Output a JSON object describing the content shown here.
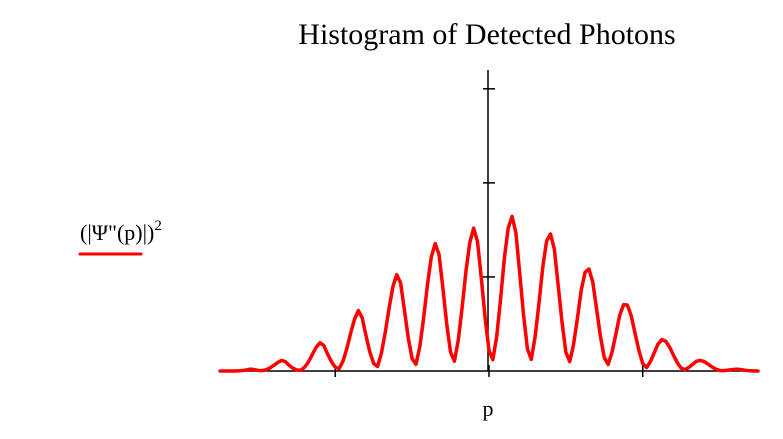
{
  "chart_data": {
    "type": "line",
    "title": "Histogram of Detected Photons",
    "xlabel": "p",
    "ylabel": {
      "open": "(|",
      "psi": "Ψ\"",
      "arg": "(p)",
      "close": "|)",
      "power": "2"
    },
    "xlim": [
      -3.5,
      3.5
    ],
    "ylim": [
      0,
      1.6
    ],
    "x_ticks": [
      -2,
      0,
      2
    ],
    "y_ticks": [
      0.5,
      1.0,
      1.5
    ],
    "grid": false,
    "series": [
      {
        "color": "#ff0000",
        "x": [
          -3.5,
          -3.45,
          -3.4,
          -3.35,
          -3.3,
          -3.25,
          -3.2,
          -3.15,
          -3.1,
          -3.05,
          -3.0,
          -2.95,
          -2.9,
          -2.85,
          -2.8,
          -2.75,
          -2.7,
          -2.65,
          -2.6,
          -2.55,
          -2.5,
          -2.45,
          -2.4,
          -2.35,
          -2.3,
          -2.25,
          -2.2,
          -2.15,
          -2.1,
          -2.05,
          -2.0,
          -1.95,
          -1.9,
          -1.85,
          -1.8,
          -1.75,
          -1.7,
          -1.65,
          -1.6,
          -1.55,
          -1.5,
          -1.45,
          -1.4,
          -1.35,
          -1.3,
          -1.25,
          -1.2,
          -1.15,
          -1.1,
          -1.05,
          -1.0,
          -0.95,
          -0.9,
          -0.85,
          -0.8,
          -0.75,
          -0.7,
          -0.65,
          -0.6,
          -0.55,
          -0.5,
          -0.45,
          -0.4,
          -0.35,
          -0.3,
          -0.25,
          -0.2,
          -0.15,
          -0.1,
          -0.05,
          0.0,
          0.05,
          0.1,
          0.15,
          0.2,
          0.25,
          0.3,
          0.35,
          0.4,
          0.45,
          0.5,
          0.55,
          0.6,
          0.65,
          0.7,
          0.75,
          0.8,
          0.85,
          0.9,
          0.95,
          1.0,
          1.05,
          1.1,
          1.15,
          1.2,
          1.25,
          1.3,
          1.35,
          1.4,
          1.45,
          1.5,
          1.55,
          1.6,
          1.65,
          1.7,
          1.75,
          1.8,
          1.85,
          1.9,
          1.95,
          2.0,
          2.05,
          2.1,
          2.15,
          2.2,
          2.25,
          2.3,
          2.35,
          2.4,
          2.45,
          2.5,
          2.55,
          2.6,
          2.65,
          2.7,
          2.75,
          2.8,
          2.85,
          2.9,
          2.95,
          3.0,
          3.05,
          3.1,
          3.15,
          3.2,
          3.25,
          3.3,
          3.35,
          3.4,
          3.45,
          3.5
        ],
        "y": [
          0.0,
          0.0,
          0.0,
          0.0,
          0.0,
          0.001,
          0.003,
          0.006,
          0.01,
          0.007,
          0.003,
          0.002,
          0.006,
          0.016,
          0.03,
          0.045,
          0.056,
          0.05,
          0.03,
          0.015,
          0.005,
          0.004,
          0.02,
          0.048,
          0.087,
          0.125,
          0.15,
          0.136,
          0.09,
          0.05,
          0.02,
          0.013,
          0.052,
          0.119,
          0.201,
          0.275,
          0.321,
          0.283,
          0.187,
          0.1,
          0.04,
          0.024,
          0.094,
          0.205,
          0.334,
          0.449,
          0.512,
          0.467,
          0.322,
          0.175,
          0.065,
          0.036,
          0.13,
          0.283,
          0.461,
          0.608,
          0.677,
          0.619,
          0.44,
          0.25,
          0.1,
          0.052,
          0.164,
          0.335,
          0.529,
          0.683,
          0.759,
          0.689,
          0.494,
          0.28,
          0.11,
          0.06,
          0.183,
          0.38,
          0.601,
          0.759,
          0.822,
          0.735,
          0.519,
          0.296,
          0.118,
          0.062,
          0.181,
          0.36,
          0.553,
          0.692,
          0.728,
          0.648,
          0.456,
          0.26,
          0.1,
          0.05,
          0.14,
          0.28,
          0.43,
          0.525,
          0.542,
          0.473,
          0.329,
          0.185,
          0.071,
          0.035,
          0.099,
          0.194,
          0.295,
          0.352,
          0.351,
          0.294,
          0.201,
          0.11,
          0.04,
          0.018,
          0.05,
          0.097,
          0.144,
          0.167,
          0.158,
          0.127,
          0.084,
          0.044,
          0.015,
          0.007,
          0.019,
          0.036,
          0.052,
          0.056,
          0.05,
          0.037,
          0.022,
          0.01,
          0.003,
          0.002,
          0.004,
          0.007,
          0.009,
          0.009,
          0.006,
          0.003,
          0.001,
          0.0,
          0.0
        ]
      }
    ]
  }
}
